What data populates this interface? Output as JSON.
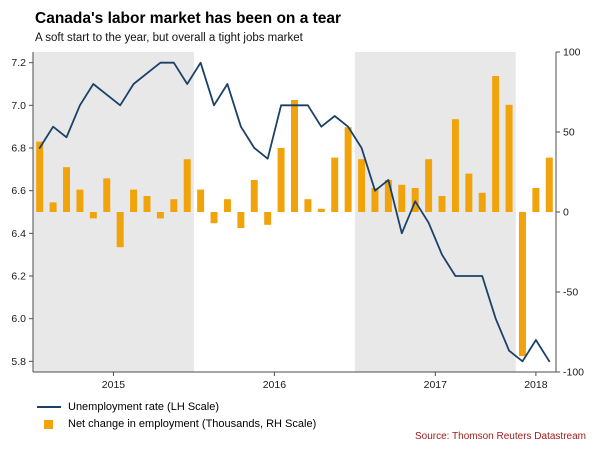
{
  "header": {
    "title": "Canada's labor market has been on a tear",
    "subtitle": "A soft start to the year, but overall a tight jobs market"
  },
  "legend": {
    "items": [
      {
        "label": "Unemployment rate (LH Scale)",
        "swatch": "line-swatch"
      },
      {
        "label": "Net change in employment (Thousands, RH Scale)",
        "swatch": "bar-swatch"
      }
    ]
  },
  "source": "Source: Thomson Reuters Datastream",
  "colors": {
    "line": "#1b4168",
    "bar": "#f0a30a",
    "band": "#e8e8e8",
    "axis": "#4d4d4d",
    "tick_text": "#1a1a1a",
    "source_text": "#9e1a1a"
  },
  "chart_data": {
    "type": "line+bar",
    "title": "Canada's labor market has been on a tear",
    "subtitle": "A soft start to the year, but overall a tight jobs market",
    "x": [
      "2015-01",
      "2015-02",
      "2015-03",
      "2015-04",
      "2015-05",
      "2015-06",
      "2015-07",
      "2015-08",
      "2015-09",
      "2015-10",
      "2015-11",
      "2015-12",
      "2016-01",
      "2016-02",
      "2016-03",
      "2016-04",
      "2016-05",
      "2016-06",
      "2016-07",
      "2016-08",
      "2016-09",
      "2016-10",
      "2016-11",
      "2016-12",
      "2017-01",
      "2017-02",
      "2017-03",
      "2017-04",
      "2017-05",
      "2017-06",
      "2017-07",
      "2017-08",
      "2017-09",
      "2017-10",
      "2017-11",
      "2017-12",
      "2018-01",
      "2018-02",
      "2018-03"
    ],
    "x_tick_labels": [
      "2015",
      "2016",
      "2017",
      "2018"
    ],
    "shaded_years": [
      "2015",
      "2017"
    ],
    "series": [
      {
        "name": "Unemployment rate (LH Scale)",
        "type": "line",
        "axis": "left",
        "values": [
          6.8,
          6.9,
          6.85,
          7.0,
          7.1,
          7.05,
          7.0,
          7.1,
          7.15,
          7.2,
          7.2,
          7.1,
          7.2,
          7.0,
          7.1,
          6.9,
          6.8,
          6.75,
          7.0,
          7.0,
          7.0,
          6.9,
          6.95,
          6.9,
          6.8,
          6.6,
          6.65,
          6.4,
          6.55,
          6.45,
          6.3,
          6.2,
          6.2,
          6.2,
          6.0,
          5.85,
          5.8,
          5.9,
          5.8
        ]
      },
      {
        "name": "Net change in employment (Thousands, RH Scale)",
        "type": "bar",
        "axis": "right",
        "values": [
          44,
          6,
          28,
          14,
          -4,
          21,
          -22,
          14,
          10,
          -4,
          8,
          33,
          14,
          -7,
          8,
          -10,
          20,
          -8,
          40,
          70,
          8,
          2,
          34,
          53,
          33,
          15,
          20,
          17,
          15,
          33,
          10,
          58,
          24,
          12,
          85,
          67,
          -90,
          15,
          34
        ]
      }
    ],
    "left_axis": {
      "label": "Unemployment rate (LH Scale)",
      "ticks": [
        7.2,
        7.0,
        6.8,
        6.6,
        6.4,
        6.2,
        6.0,
        5.8
      ],
      "range": [
        5.75,
        7.25
      ]
    },
    "right_axis": {
      "label": "Net change in employment (Thousands, RH Scale)",
      "ticks": [
        100,
        50,
        0,
        -50,
        -100
      ],
      "range": [
        -100,
        100
      ]
    },
    "grid": false,
    "legend_position": "bottom-left"
  }
}
